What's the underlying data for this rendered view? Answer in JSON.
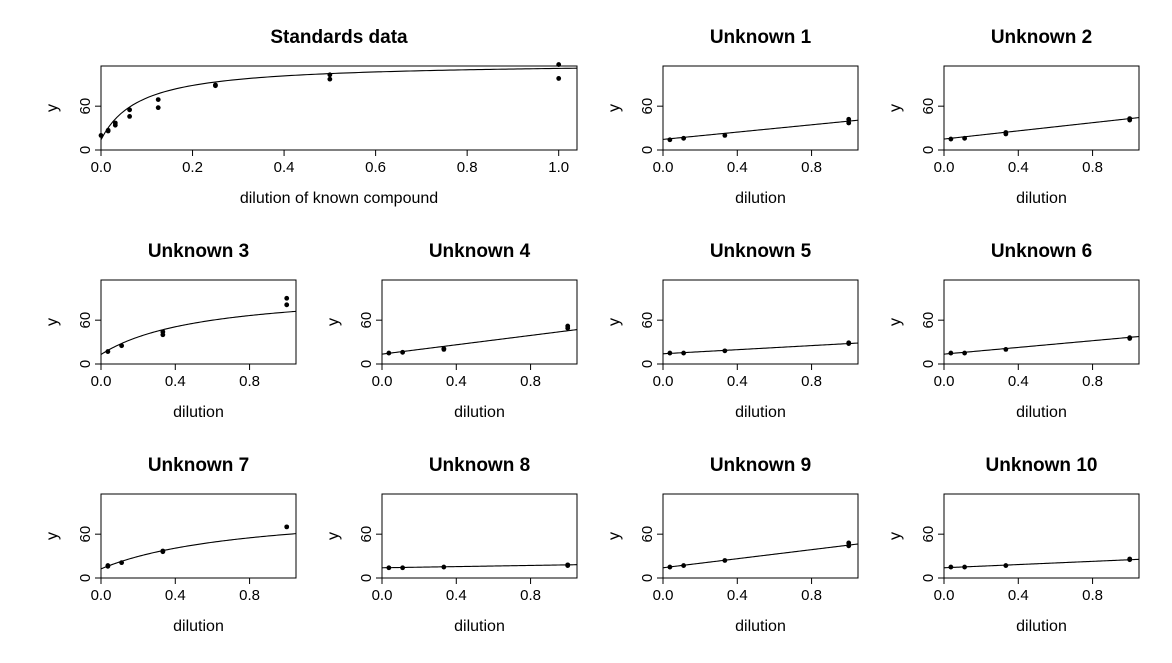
{
  "chart_data": [
    {
      "id": "standards",
      "type": "scatter",
      "title": "Standards data",
      "xlabel": "dilution of known compound",
      "ylabel": "y",
      "xlim": [
        0,
        1.04
      ],
      "ylim": [
        0,
        115
      ],
      "xticks": [
        0,
        0.2,
        0.4,
        0.6,
        0.8,
        1
      ],
      "xtick_labels": [
        "0.0",
        "0.2",
        "0.4",
        "0.6",
        "0.8",
        "1.0"
      ],
      "yticks": [
        0,
        60
      ],
      "ytick_labels": [
        "0",
        "60"
      ],
      "points": [
        [
          0,
          20
        ],
        [
          0.0156,
          27
        ],
        [
          0.0156,
          26
        ],
        [
          0.03125,
          34
        ],
        [
          0.03125,
          37
        ],
        [
          0.0625,
          46
        ],
        [
          0.0625,
          55
        ],
        [
          0.125,
          58
        ],
        [
          0.125,
          69
        ],
        [
          0.25,
          89
        ],
        [
          0.25,
          88
        ],
        [
          0.5,
          103
        ],
        [
          0.5,
          97
        ],
        [
          1,
          117
        ],
        [
          1,
          98
        ]
      ],
      "curve": {
        "form": "asymptotic",
        "params": [
          14,
          106,
          0.085
        ]
      }
    },
    {
      "id": "unknown1",
      "type": "scatter",
      "title": "Unknown 1",
      "xlabel": "dilution",
      "ylabel": "y",
      "xlim": [
        0,
        1.05
      ],
      "ylim": [
        0,
        115
      ],
      "xticks": [
        0,
        0.4,
        0.8
      ],
      "xtick_labels": [
        "0.0",
        "0.4",
        "0.8"
      ],
      "yticks": [
        0,
        60
      ],
      "ytick_labels": [
        "0",
        "60"
      ],
      "points": [
        [
          0.037,
          14
        ],
        [
          0.111,
          16
        ],
        [
          0.333,
          20
        ],
        [
          1,
          37
        ],
        [
          1,
          42
        ]
      ],
      "curve": {
        "form": "linear",
        "params": [
          14.5,
          25
        ]
      }
    },
    {
      "id": "unknown2",
      "type": "scatter",
      "title": "Unknown 2",
      "xlabel": "dilution",
      "ylabel": "y",
      "xlim": [
        0,
        1.05
      ],
      "ylim": [
        0,
        115
      ],
      "xticks": [
        0,
        0.4,
        0.8
      ],
      "xtick_labels": [
        "0.0",
        "0.4",
        "0.8"
      ],
      "yticks": [
        0,
        60
      ],
      "ytick_labels": [
        "0",
        "60"
      ],
      "points": [
        [
          0.037,
          15
        ],
        [
          0.111,
          16
        ],
        [
          0.333,
          22
        ],
        [
          0.333,
          24
        ],
        [
          1,
          41
        ],
        [
          1,
          43
        ]
      ],
      "curve": {
        "form": "linear",
        "params": [
          15,
          28
        ]
      }
    },
    {
      "id": "unknown3",
      "type": "scatter",
      "title": "Unknown 3",
      "xlabel": "dilution",
      "ylabel": "y",
      "xlim": [
        0,
        1.05
      ],
      "ylim": [
        0,
        115
      ],
      "xticks": [
        0,
        0.4,
        0.8
      ],
      "xtick_labels": [
        "0.0",
        "0.4",
        "0.8"
      ],
      "yticks": [
        0,
        60
      ],
      "ytick_labels": [
        "0",
        "60"
      ],
      "points": [
        [
          0.037,
          17
        ],
        [
          0.111,
          25
        ],
        [
          0.333,
          40
        ],
        [
          0.333,
          44
        ],
        [
          1,
          81
        ],
        [
          1,
          90
        ]
      ],
      "curve": {
        "form": "asymptotic",
        "params": [
          13,
          90,
          0.55
        ]
      }
    },
    {
      "id": "unknown4",
      "type": "scatter",
      "title": "Unknown 4",
      "xlabel": "dilution",
      "ylabel": "y",
      "xlim": [
        0,
        1.05
      ],
      "ylim": [
        0,
        115
      ],
      "xticks": [
        0,
        0.4,
        0.8
      ],
      "xtick_labels": [
        "0.0",
        "0.4",
        "0.8"
      ],
      "yticks": [
        0,
        60
      ],
      "ytick_labels": [
        "0",
        "60"
      ],
      "points": [
        [
          0.037,
          15
        ],
        [
          0.111,
          16
        ],
        [
          0.333,
          20
        ],
        [
          0.333,
          21
        ],
        [
          1,
          49
        ],
        [
          1,
          52
        ]
      ],
      "curve": {
        "form": "linear",
        "params": [
          13.5,
          32
        ]
      }
    },
    {
      "id": "unknown5",
      "type": "scatter",
      "title": "Unknown 5",
      "xlabel": "dilution",
      "ylabel": "y",
      "xlim": [
        0,
        1.05
      ],
      "ylim": [
        0,
        115
      ],
      "xticks": [
        0,
        0.4,
        0.8
      ],
      "xtick_labels": [
        "0.0",
        "0.4",
        "0.8"
      ],
      "yticks": [
        0,
        60
      ],
      "ytick_labels": [
        "0",
        "60"
      ],
      "points": [
        [
          0.037,
          15
        ],
        [
          0.111,
          15
        ],
        [
          0.333,
          18
        ],
        [
          1,
          28
        ],
        [
          1,
          29
        ]
      ],
      "curve": {
        "form": "linear",
        "params": [
          14,
          14
        ]
      }
    },
    {
      "id": "unknown6",
      "type": "scatter",
      "title": "Unknown 6",
      "xlabel": "dilution",
      "ylabel": "y",
      "xlim": [
        0,
        1.05
      ],
      "ylim": [
        0,
        115
      ],
      "xticks": [
        0,
        0.4,
        0.8
      ],
      "xtick_labels": [
        "0.0",
        "0.4",
        "0.8"
      ],
      "yticks": [
        0,
        60
      ],
      "ytick_labels": [
        "0",
        "60"
      ],
      "points": [
        [
          0.037,
          15
        ],
        [
          0.111,
          15
        ],
        [
          0.333,
          20
        ],
        [
          1,
          35
        ],
        [
          1,
          36
        ]
      ],
      "curve": {
        "form": "linear",
        "params": [
          13.5,
          23
        ]
      }
    },
    {
      "id": "unknown7",
      "type": "scatter",
      "title": "Unknown 7",
      "xlabel": "dilution",
      "ylabel": "y",
      "xlim": [
        0,
        1.05
      ],
      "ylim": [
        0,
        115
      ],
      "xticks": [
        0,
        0.4,
        0.8
      ],
      "xtick_labels": [
        "0.0",
        "0.4",
        "0.8"
      ],
      "yticks": [
        0,
        60
      ],
      "ytick_labels": [
        "0",
        "60"
      ],
      "points": [
        [
          0.037,
          16
        ],
        [
          0.037,
          17
        ],
        [
          0.111,
          21
        ],
        [
          0.333,
          36
        ],
        [
          0.333,
          37
        ],
        [
          1,
          70
        ]
      ],
      "curve": {
        "form": "asymptotic",
        "params": [
          12.5,
          85,
          0.8
        ]
      }
    },
    {
      "id": "unknown8",
      "type": "scatter",
      "title": "Unknown 8",
      "xlabel": "dilution",
      "ylabel": "y",
      "xlim": [
        0,
        1.05
      ],
      "ylim": [
        0,
        115
      ],
      "xticks": [
        0,
        0.4,
        0.8
      ],
      "xtick_labels": [
        "0.0",
        "0.4",
        "0.8"
      ],
      "yticks": [
        0,
        60
      ],
      "ytick_labels": [
        "0",
        "60"
      ],
      "points": [
        [
          0.037,
          14
        ],
        [
          0.111,
          14
        ],
        [
          0.333,
          15
        ],
        [
          1,
          17
        ],
        [
          1,
          18
        ]
      ],
      "curve": {
        "form": "linear",
        "params": [
          14,
          4
        ]
      }
    },
    {
      "id": "unknown9",
      "type": "scatter",
      "title": "Unknown 9",
      "xlabel": "dilution",
      "ylabel": "y",
      "xlim": [
        0,
        1.05
      ],
      "ylim": [
        0,
        115
      ],
      "xticks": [
        0,
        0.4,
        0.8
      ],
      "xtick_labels": [
        "0.0",
        "0.4",
        "0.8"
      ],
      "yticks": [
        0,
        60
      ],
      "ytick_labels": [
        "0",
        "60"
      ],
      "points": [
        [
          0.037,
          15
        ],
        [
          0.111,
          17
        ],
        [
          0.333,
          24
        ],
        [
          1,
          44
        ],
        [
          1,
          48
        ]
      ],
      "curve": {
        "form": "linear",
        "params": [
          14,
          31
        ]
      }
    },
    {
      "id": "unknown10",
      "type": "scatter",
      "title": "Unknown 10",
      "xlabel": "dilution",
      "ylabel": "y",
      "xlim": [
        0,
        1.05
      ],
      "ylim": [
        0,
        115
      ],
      "xticks": [
        0,
        0.4,
        0.8
      ],
      "xtick_labels": [
        "0.0",
        "0.4",
        "0.8"
      ],
      "yticks": [
        0,
        60
      ],
      "ytick_labels": [
        "0",
        "60"
      ],
      "points": [
        [
          0.037,
          15
        ],
        [
          0.111,
          15
        ],
        [
          0.333,
          17
        ],
        [
          1,
          25
        ],
        [
          1,
          26
        ]
      ],
      "curve": {
        "form": "linear",
        "params": [
          14,
          11
        ]
      }
    }
  ]
}
